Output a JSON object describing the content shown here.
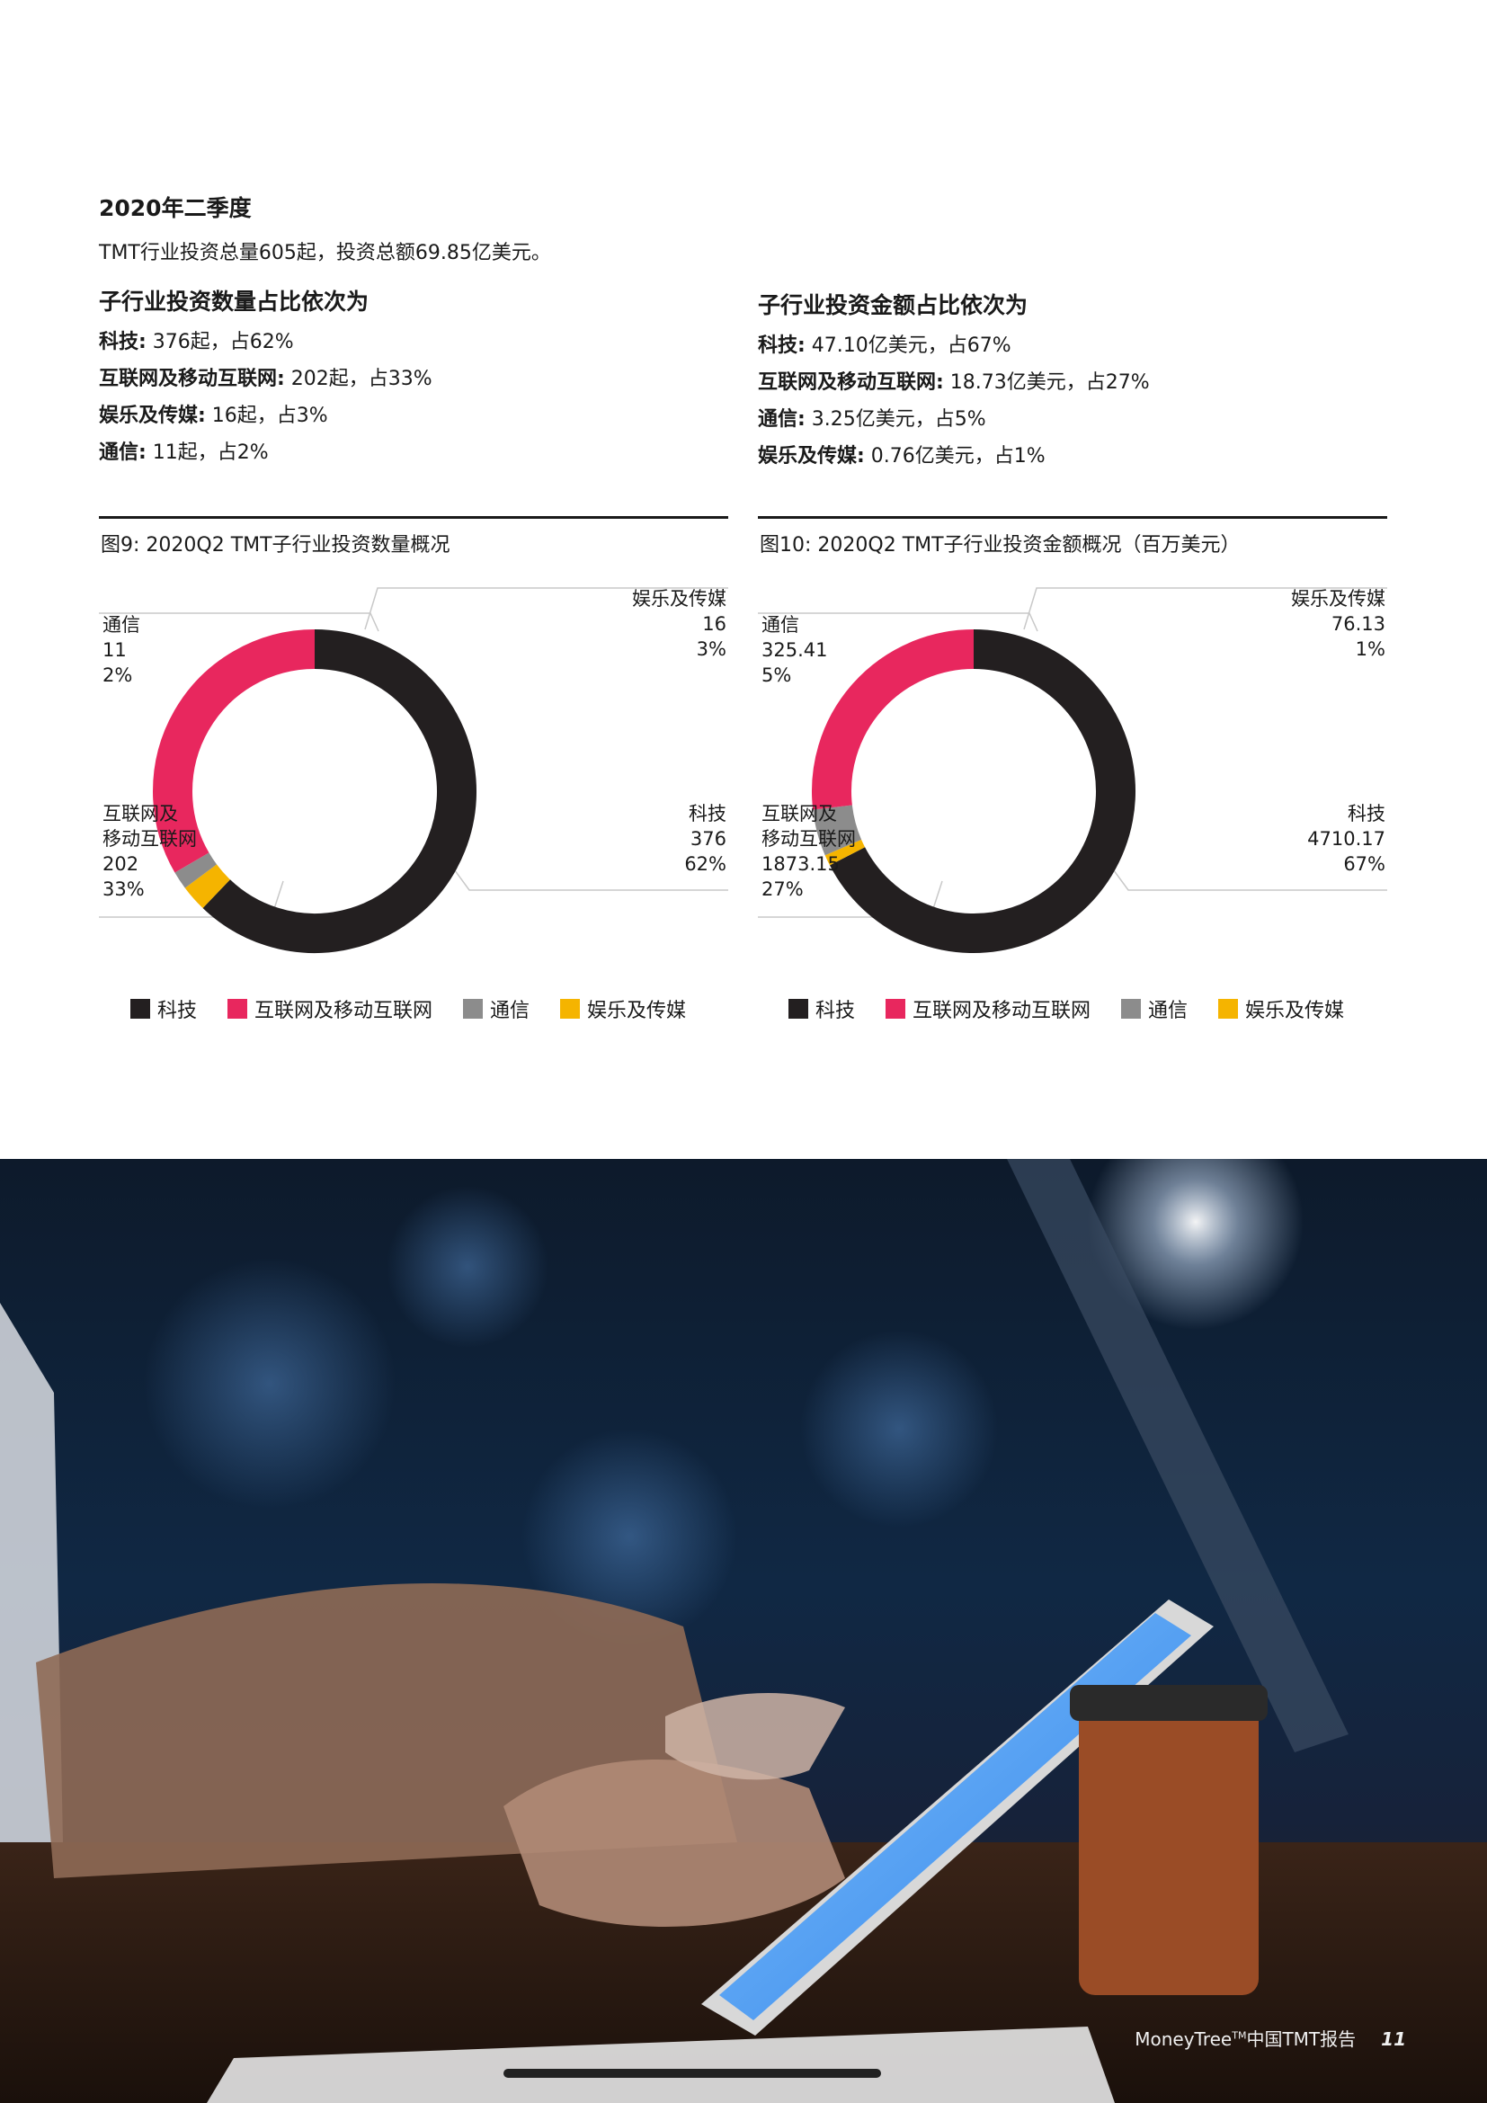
{
  "section": {
    "heading": "2020年二季度",
    "intro": "TMT行业投资总量605起，投资总额69.85亿美元。"
  },
  "left_col": {
    "title": "子行业投资数量占比依次为",
    "stats": [
      {
        "label": "科技:",
        "value": " 376起，占62%"
      },
      {
        "label": "互联网及移动互联网:",
        "value": " 202起，占33%"
      },
      {
        "label": "娱乐及传媒:",
        "value": " 16起，占3%"
      },
      {
        "label": "通信:",
        "value": " 11起，占2%"
      }
    ]
  },
  "right_col": {
    "title": "子行业投资金额占比依次为",
    "stats": [
      {
        "label": "科技:",
        "value": " 47.10亿美元，占67%"
      },
      {
        "label": "互联网及移动互联网:",
        "value": " 18.73亿美元，占27%"
      },
      {
        "label": "通信:",
        "value": " 3.25亿美元，占5%"
      },
      {
        "label": "娱乐及传媒:",
        "value": " 0.76亿美元，占1%"
      }
    ]
  },
  "colors": {
    "tech": "#231f20",
    "internet": "#e8275e",
    "telecom": "#8c8c8c",
    "media": "#f5b400",
    "leader": "#c8c8c8"
  },
  "chart_data": [
    {
      "type": "pie",
      "title": "图9: 2020Q2 TMT子行业投资数量概况",
      "donut": true,
      "legend_position": "bottom",
      "legend": [
        "科技",
        "互联网及移动互联网",
        "通信",
        "娱乐及传媒"
      ],
      "series": [
        {
          "name": "科技",
          "value": 376,
          "pct": "62%",
          "label_lines": [
            "科技",
            "376",
            "62%"
          ]
        },
        {
          "name": "互联网及移动互联网",
          "value": 202,
          "pct": "33%",
          "label_lines": [
            "互联网及",
            "移动互联网",
            "202",
            "33%"
          ]
        },
        {
          "name": "通信",
          "value": 11,
          "pct": "2%",
          "label_lines": [
            "通信",
            "11",
            "2%"
          ]
        },
        {
          "name": "娱乐及传媒",
          "value": 16,
          "pct": "3%",
          "label_lines": [
            "娱乐及传媒",
            "16",
            "3%"
          ]
        }
      ]
    },
    {
      "type": "pie",
      "title": "图10: 2020Q2 TMT子行业投资金额概况（百万美元）",
      "donut": true,
      "legend_position": "bottom",
      "legend": [
        "科技",
        "互联网及移动互联网",
        "通信",
        "娱乐及传媒"
      ],
      "series": [
        {
          "name": "科技",
          "value": 4710.17,
          "pct": "67%",
          "label_lines": [
            "科技",
            "4710.17",
            "67%"
          ]
        },
        {
          "name": "互联网及移动互联网",
          "value": 1873.15,
          "pct": "27%",
          "label_lines": [
            "互联网及",
            "移动互联网",
            "1873.15",
            "27%"
          ]
        },
        {
          "name": "通信",
          "value": 325.41,
          "pct": "5%",
          "label_lines": [
            "通信",
            "325.41",
            "5%"
          ]
        },
        {
          "name": "娱乐及传媒",
          "value": 76.13,
          "pct": "1%",
          "label_lines": [
            "娱乐及传媒",
            "76.13",
            "1%"
          ]
        }
      ]
    }
  ],
  "footer": {
    "brand": "MoneyTree",
    "tm": "TM",
    "suffix": "中国TMT报告",
    "page": "11"
  }
}
